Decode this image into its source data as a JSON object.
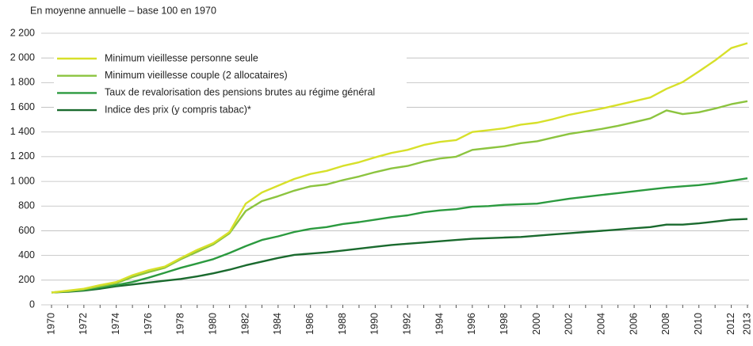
{
  "chart_data": {
    "type": "line",
    "title": "En moyenne annuelle – base 100 en 1970",
    "x": [
      1970,
      1971,
      1972,
      1973,
      1974,
      1975,
      1976,
      1977,
      1978,
      1979,
      1980,
      1981,
      1982,
      1983,
      1984,
      1985,
      1986,
      1987,
      1988,
      1989,
      1990,
      1991,
      1992,
      1993,
      1994,
      1995,
      1996,
      1997,
      1998,
      1999,
      2000,
      2001,
      2002,
      2003,
      2004,
      2005,
      2006,
      2007,
      2008,
      2009,
      2010,
      2011,
      2012,
      2013
    ],
    "xlim": [
      1970,
      2013
    ],
    "xticks": [
      1970,
      1972,
      1974,
      1976,
      1978,
      1980,
      1982,
      1984,
      1986,
      1988,
      1990,
      1992,
      1994,
      1996,
      1998,
      2000,
      2002,
      2004,
      2006,
      2008,
      2010,
      2012,
      2013
    ],
    "ylim": [
      0,
      2200
    ],
    "yticks": [
      0,
      200,
      400,
      600,
      800,
      {
        "value": 1000,
        "label": "1 000"
      },
      {
        "value": 1200,
        "label": "1 200"
      },
      {
        "value": 1400,
        "label": "1 400"
      },
      {
        "value": 1600,
        "label": "1 600"
      },
      {
        "value": 1800,
        "label": "1 800"
      },
      {
        "value": 2000,
        "label": "2 000"
      },
      {
        "value": 2200,
        "label": "2 200"
      }
    ],
    "grid": true,
    "legend": "top-left",
    "series": [
      {
        "name": "Minimum vieillesse personne seule",
        "color": "#d7e02a",
        "values": [
          100,
          115,
          130,
          160,
          185,
          240,
          280,
          310,
          380,
          445,
          500,
          590,
          820,
          910,
          965,
          1020,
          1060,
          1085,
          1125,
          1155,
          1195,
          1230,
          1255,
          1295,
          1320,
          1335,
          1400,
          1415,
          1430,
          1460,
          1475,
          1505,
          1540,
          1565,
          1590,
          1620,
          1650,
          1680,
          1750,
          1805,
          1890,
          1980,
          2080,
          2120
        ]
      },
      {
        "name": "Minimum vieillesse couple (2 allocataires)",
        "color": "#8cc43f",
        "values": [
          100,
          110,
          125,
          150,
          175,
          225,
          265,
          300,
          370,
          430,
          490,
          580,
          760,
          840,
          880,
          925,
          960,
          975,
          1010,
          1040,
          1075,
          1105,
          1125,
          1160,
          1185,
          1200,
          1255,
          1270,
          1285,
          1310,
          1325,
          1355,
          1385,
          1405,
          1425,
          1450,
          1480,
          1510,
          1575,
          1545,
          1560,
          1590,
          1625,
          1650
        ]
      },
      {
        "name": "Taux de revalorisation des pensions brutes au régime général",
        "color": "#2b9a3f",
        "values": [
          100,
          110,
          120,
          140,
          160,
          185,
          220,
          260,
          300,
          335,
          370,
          420,
          475,
          525,
          555,
          590,
          615,
          630,
          655,
          670,
          690,
          710,
          725,
          750,
          765,
          775,
          795,
          800,
          810,
          815,
          820,
          840,
          860,
          875,
          890,
          905,
          920,
          935,
          950,
          960,
          970,
          985,
          1005,
          1025
        ]
      },
      {
        "name": "Indice des prix (y compris tabac)*",
        "color": "#1a6a2e",
        "values": [
          100,
          105,
          115,
          130,
          150,
          165,
          180,
          195,
          210,
          230,
          255,
          285,
          320,
          350,
          380,
          405,
          415,
          425,
          440,
          455,
          470,
          485,
          495,
          505,
          515,
          525,
          535,
          540,
          545,
          550,
          560,
          570,
          580,
          590,
          600,
          610,
          620,
          630,
          650,
          650,
          660,
          675,
          690,
          695
        ]
      }
    ]
  }
}
